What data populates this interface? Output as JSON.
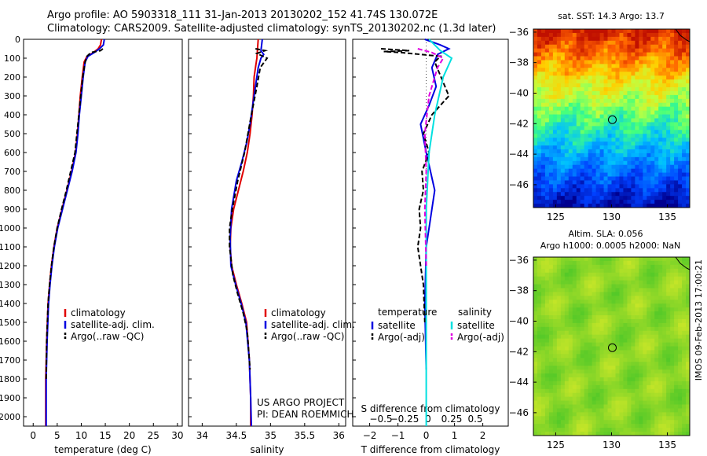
{
  "header": {
    "line1": "Argo profile: AO 5903318_111 31-Jan-2013 20130202_152 41.74S 130.072E",
    "line2": "Climatology: CARS2009. Satellite-adjusted climatology: synTS_20130202.nc (1.3d later)"
  },
  "footer_note": "IMOS 09-Feb-2013 17:00:21",
  "colors": {
    "clim": "#e00000",
    "sat": "#0000e0",
    "argo": "#000000",
    "sat_s": "#00e0e0",
    "argo_s": "#e000e0"
  },
  "chart_data": [
    {
      "type": "line",
      "xlabel": "temperature (deg C)",
      "ylabel": "",
      "xlim": [
        -2,
        31
      ],
      "ylim": [
        2050,
        0
      ],
      "xticks": [
        0,
        5,
        10,
        15,
        20,
        25,
        30
      ],
      "yticks": [
        0,
        100,
        200,
        300,
        400,
        500,
        600,
        700,
        800,
        900,
        1000,
        1100,
        1200,
        1300,
        1400,
        1500,
        1600,
        1700,
        1800,
        1900,
        2000
      ],
      "legend": [
        "climatology",
        "satellite-adj. clim.",
        "Argo(..raw -QC)"
      ],
      "series": [
        {
          "name": "climatology",
          "color": "#e00000",
          "dash": "",
          "x": [
            14.2,
            14.0,
            13.5,
            12.5,
            11.2,
            10.6,
            10.2,
            9.8,
            9.5,
            9.2,
            8.8,
            8.0,
            7.0,
            6.0,
            5.0,
            4.3,
            3.8,
            3.4,
            3.1,
            2.8,
            2.6,
            2.6
          ],
          "y": [
            0,
            30,
            50,
            70,
            90,
            120,
            200,
            300,
            400,
            500,
            600,
            700,
            800,
            900,
            1000,
            1100,
            1200,
            1300,
            1400,
            1600,
            1800,
            2050
          ]
        },
        {
          "name": "satellite-adj. clim.",
          "color": "#0000e0",
          "dash": "",
          "x": [
            14.8,
            14.6,
            13.8,
            12.7,
            11.4,
            10.8,
            10.4,
            10.0,
            9.6,
            9.3,
            8.9,
            8.1,
            7.1,
            6.1,
            5.1,
            4.4,
            3.9,
            3.5,
            3.2,
            2.9,
            2.7,
            2.7
          ],
          "y": [
            0,
            30,
            50,
            70,
            90,
            120,
            200,
            300,
            400,
            500,
            600,
            700,
            800,
            900,
            1000,
            1100,
            1200,
            1300,
            1400,
            1600,
            1800,
            2050
          ]
        },
        {
          "name": "Argo(..raw -QC)",
          "color": "#000000",
          "dash": "6,3",
          "x": [
            14.5,
            14.0,
            13.0,
            12.0,
            11.2,
            10.8,
            10.3,
            9.9,
            9.5,
            9.1,
            8.7,
            7.8,
            6.9,
            5.9,
            5.0,
            4.3,
            3.8,
            3.4,
            3.1,
            2.8,
            2.7
          ],
          "y": [
            50,
            60,
            65,
            70,
            90,
            120,
            200,
            300,
            400,
            500,
            600,
            700,
            800,
            900,
            1000,
            1100,
            1200,
            1300,
            1400,
            1600,
            1800
          ]
        }
      ]
    },
    {
      "type": "line",
      "xlabel": "salinity",
      "ylabel": "",
      "xlim": [
        33.8,
        36.1
      ],
      "ylim": [
        2050,
        0
      ],
      "xticks": [
        34,
        34.5,
        35,
        35.5,
        36
      ],
      "legend": [
        "climatology",
        "satellite-adj. clim.",
        "Argo(..raw -QC)"
      ],
      "notes": [
        "US ARGO PROJECT",
        "PI: DEAN ROEMMICH"
      ],
      "series": [
        {
          "name": "climatology",
          "color": "#e00000",
          "dash": "",
          "x": [
            34.82,
            34.8,
            34.78,
            34.76,
            34.75,
            34.73,
            34.7,
            34.66,
            34.6,
            34.53,
            34.46,
            34.42,
            34.41,
            34.43,
            34.5,
            34.58,
            34.65,
            34.69,
            34.71,
            34.71
          ],
          "y": [
            0,
            100,
            150,
            200,
            300,
            400,
            500,
            600,
            700,
            800,
            900,
            1000,
            1100,
            1200,
            1300,
            1400,
            1500,
            1700,
            1900,
            2050
          ]
        },
        {
          "name": "satellite-adj. clim.",
          "color": "#0000e0",
          "dash": "",
          "x": [
            34.88,
            34.86,
            34.9,
            34.86,
            34.82,
            34.78,
            34.74,
            34.7,
            34.65,
            34.58,
            34.5,
            34.43,
            34.41,
            34.42,
            34.49,
            34.57,
            34.64,
            34.69,
            34.71,
            34.72
          ],
          "y": [
            0,
            60,
            80,
            100,
            150,
            250,
            350,
            450,
            550,
            650,
            750,
            900,
            1050,
            1200,
            1300,
            1400,
            1500,
            1700,
            1900,
            2050
          ]
        },
        {
          "name": "Argo(..raw -QC)",
          "color": "#000000",
          "dash": "6,3",
          "x": [
            34.78,
            34.92,
            34.8,
            34.95,
            34.85,
            34.8,
            34.72,
            34.62,
            34.52,
            34.44,
            34.4,
            34.4,
            34.45,
            34.52,
            34.6,
            34.66,
            34.7
          ],
          "y": [
            50,
            60,
            75,
            100,
            150,
            250,
            400,
            600,
            750,
            900,
            1000,
            1100,
            1250,
            1350,
            1450,
            1550,
            1750
          ]
        }
      ]
    },
    {
      "type": "line",
      "xlabel": "T difference from climatology",
      "x2label": "S difference from climatology",
      "xlim": [
        -2.6,
        2.9
      ],
      "ylim": [
        2050,
        0
      ],
      "xticks": [
        -2,
        -1,
        0,
        1,
        2
      ],
      "x2ticks": [
        -0.5,
        -0.25,
        0,
        0.25,
        0.5
      ],
      "legend_titles": [
        "temperature",
        "salinity"
      ],
      "legend": [
        "satellite",
        "Argo(-adj)",
        "satellite",
        "Argo(-adj)"
      ],
      "series": [
        {
          "name": "satellite",
          "color": "#0000e0",
          "dash": "",
          "x": [
            -0.05,
            0.5,
            0.8,
            0.4,
            0.2,
            0.35,
            0.1,
            -0.2,
            0.0,
            0.3,
            0.2,
            0.0,
            -0.05,
            0.0
          ],
          "y": [
            0,
            30,
            50,
            80,
            150,
            250,
            350,
            450,
            600,
            800,
            900,
            1100,
            1400,
            1750
          ]
        },
        {
          "name": "Argo(-adj)",
          "color": "#000000",
          "dash": "6,3",
          "x": [
            -1.6,
            -0.6,
            -1.5,
            -0.9,
            0.5,
            0.3,
            0.8,
            0.2,
            -0.1,
            0.1,
            -0.15,
            -0.1,
            -0.25,
            -0.2,
            -0.3,
            -0.1,
            -0.05
          ],
          "y": [
            50,
            60,
            65,
            70,
            90,
            120,
            300,
            400,
            500,
            600,
            700,
            800,
            900,
            1000,
            1100,
            1300,
            1500
          ]
        },
        {
          "name": "satellite",
          "color": "#00e0e0",
          "dash": "",
          "x": [
            0.1,
            0.5,
            0.9,
            0.6,
            0.3,
            0.1,
            0.0,
            0.0,
            0.0,
            0.0
          ],
          "y": [
            0,
            60,
            100,
            200,
            400,
            600,
            900,
            1200,
            1600,
            2050
          ]
        },
        {
          "name": "Argo(-adj)",
          "color": "#e000e0",
          "dash": "6,3",
          "x": [
            -0.3,
            0.2,
            0.6,
            0.4,
            0.1,
            -0.05,
            0.0,
            -0.05,
            0.0
          ],
          "y": [
            50,
            70,
            100,
            150,
            300,
            500,
            700,
            900,
            1200
          ]
        }
      ]
    },
    {
      "type": "heatmap",
      "title": "sat. SST: 14.3  Argo: 13.7",
      "xlim": [
        123,
        137
      ],
      "ylim": [
        -47.5,
        -35.8
      ],
      "xticks": [
        125,
        130,
        135
      ],
      "yticks": [
        -36,
        -38,
        -40,
        -42,
        -44,
        -46
      ],
      "marker": {
        "x": 130.07,
        "y": -41.74
      }
    },
    {
      "type": "heatmap",
      "title": "Altim. SLA: 0.056",
      "subtitle": "Argo h1000: 0.0005 h2000: NaN",
      "xlim": [
        123,
        137
      ],
      "ylim": [
        -47.5,
        -35.8
      ],
      "xticks": [
        125,
        130,
        135
      ],
      "yticks": [
        -36,
        -38,
        -40,
        -42,
        -44,
        -46
      ],
      "marker": {
        "x": 130.07,
        "y": -41.74
      }
    }
  ]
}
